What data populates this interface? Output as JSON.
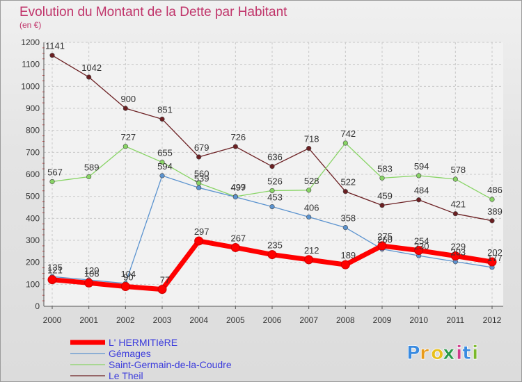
{
  "chart_data": {
    "type": "line",
    "title": "Evolution du Montant de la Dette par Habitant",
    "subtitle": "(en €)",
    "xlabel": "",
    "ylabel": "",
    "ylim": [
      0,
      1200
    ],
    "yticks": [
      0,
      100,
      200,
      300,
      400,
      500,
      600,
      700,
      800,
      900,
      1000,
      1100,
      1200
    ],
    "categories": [
      "2000",
      "2001",
      "2002",
      "2003",
      "2004",
      "2005",
      "2006",
      "2007",
      "2008",
      "2009",
      "2010",
      "2011",
      "2012"
    ],
    "grid": true,
    "legend_position": "bottom-left",
    "series": [
      {
        "name": "Le Theil",
        "color": "#6b1f22",
        "values": [
          1141,
          1042,
          900,
          851,
          679,
          726,
          636,
          718,
          522,
          459,
          484,
          421,
          389
        ]
      },
      {
        "name": "Saint-Germain-de-la-Coudre",
        "color": "#88d465",
        "values": [
          567,
          589,
          727,
          655,
          560,
          499,
          526,
          528,
          742,
          583,
          594,
          578,
          486
        ]
      },
      {
        "name": "Gémages",
        "color": "#5b93cf",
        "values": [
          135,
          120,
          104,
          594,
          539,
          497,
          453,
          406,
          358,
          260,
          230,
          203,
          177
        ]
      },
      {
        "name": "L' HERMITIèRE",
        "color": "#ff0000",
        "values": [
          121,
          106,
          90,
          77,
          297,
          267,
          235,
          212,
          189,
          275,
          254,
          229,
          202
        ]
      }
    ]
  },
  "logo": {
    "letters": [
      "P",
      "r",
      "o",
      "x",
      "i",
      "t",
      "i"
    ],
    "colors": [
      "#3a8be0",
      "#e89a1a",
      "#e8c01a",
      "#2a9a4a",
      "#d03a8a",
      "#3a8be0",
      "#7ab82a"
    ]
  }
}
